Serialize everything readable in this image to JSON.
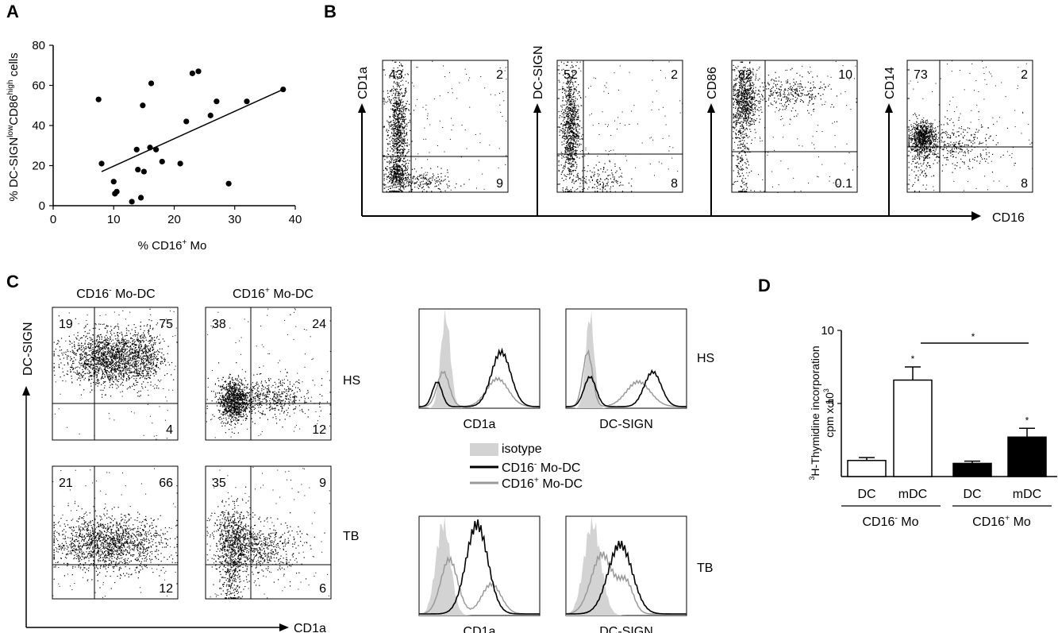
{
  "panels": {
    "A": "A",
    "B": "B",
    "C": "C",
    "D": "D"
  },
  "chart_data": [
    {
      "panel": "A",
      "type": "scatter",
      "xlabel_pre": "% CD16",
      "xlabel_sup": "+",
      "xlabel_post": " Mo",
      "ylabel_parts": [
        "% DC-SIGN",
        "low",
        "CD86",
        "high",
        " cells"
      ],
      "xlim": [
        0,
        40
      ],
      "ylim": [
        0,
        80
      ],
      "xticks": [
        0,
        10,
        20,
        30,
        40
      ],
      "yticks": [
        0,
        20,
        40,
        60,
        80
      ],
      "x": [
        7.5,
        8,
        10,
        10.2,
        10.5,
        13,
        13.8,
        14,
        14.5,
        14.8,
        15,
        16,
        16.2,
        17,
        18,
        21,
        22,
        23,
        24,
        26,
        27,
        29,
        32,
        38
      ],
      "y": [
        53,
        21,
        12,
        6,
        7,
        2,
        28,
        18,
        4,
        50,
        17,
        29,
        61,
        28,
        22,
        21,
        42,
        66,
        67,
        45,
        52,
        11,
        52,
        58
      ],
      "trendline": {
        "x": [
          8,
          38
        ],
        "y": [
          17,
          58
        ]
      }
    },
    {
      "panel": "B",
      "type": "scatter",
      "common_xlabel": "CD16",
      "plots": [
        {
          "ylabel": "CD1a",
          "quadrants": {
            "ul": "43",
            "ur": "2",
            "lr": "9"
          }
        },
        {
          "ylabel": "DC-SIGN",
          "quadrants": {
            "ul": "52",
            "ur": "2",
            "lr": "8"
          }
        },
        {
          "ylabel": "CD86",
          "quadrants": {
            "ul": "82",
            "ur": "10",
            "lr": "0.1"
          }
        },
        {
          "ylabel": "CD14",
          "quadrants": {
            "ul": "73",
            "ur": "2",
            "lr": "8"
          }
        }
      ]
    },
    {
      "panel": "C",
      "type": "scatter",
      "col_headers": [
        {
          "pre": "CD16",
          "sup": "-",
          "post": " Mo-DC"
        },
        {
          "pre": "CD16",
          "sup": "+",
          "post": " Mo-DC"
        }
      ],
      "ylabel": "DC-SIGN",
      "xlabel": "CD1a",
      "rows": [
        {
          "label": "HS",
          "plots": [
            {
              "ul": "19",
              "ur": "75",
              "lr": "4"
            },
            {
              "ul": "38",
              "ur": "24",
              "lr": "12"
            }
          ]
        },
        {
          "label": "TB",
          "plots": [
            {
              "ul": "21",
              "ur": "66",
              "lr": "12"
            },
            {
              "ul": "35",
              "ur": "9",
              "lr": "6"
            }
          ]
        }
      ],
      "histogram_xlabels": [
        "CD1a",
        "DC-SIGN"
      ],
      "legend": [
        {
          "label": "isotype",
          "sup": "",
          "post": "",
          "color": "#d3d3d3"
        },
        {
          "label": "CD16",
          "sup": "-",
          "post": " Mo-DC",
          "color": "#000000"
        },
        {
          "label": "CD16",
          "sup": "+",
          "post": " Mo-DC",
          "color": "#999999"
        }
      ]
    },
    {
      "panel": "D",
      "type": "bar",
      "ylabel_line1_sup": "3",
      "ylabel_line1": "H-Thymidine incorporation",
      "ylabel_line2": "cpm x 10",
      "ylabel_line2_sup": "3",
      "ylim": [
        0,
        10
      ],
      "yticks": [
        5,
        10
      ],
      "categories": [
        "DC",
        "mDC",
        "DC",
        "mDC"
      ],
      "values": [
        1.1,
        6.6,
        0.9,
        2.7
      ],
      "errors": [
        0.2,
        0.9,
        0.15,
        0.6
      ],
      "fills": [
        "#ffffff",
        "#ffffff",
        "#000000",
        "#000000"
      ],
      "stars": [
        "",
        "*",
        "",
        "*"
      ],
      "group_labels": [
        {
          "pre": "CD16",
          "sup": "-",
          "post": " Mo"
        },
        {
          "pre": "CD16",
          "sup": "+",
          "post": " Mo"
        }
      ],
      "comparison_star": "*"
    }
  ]
}
